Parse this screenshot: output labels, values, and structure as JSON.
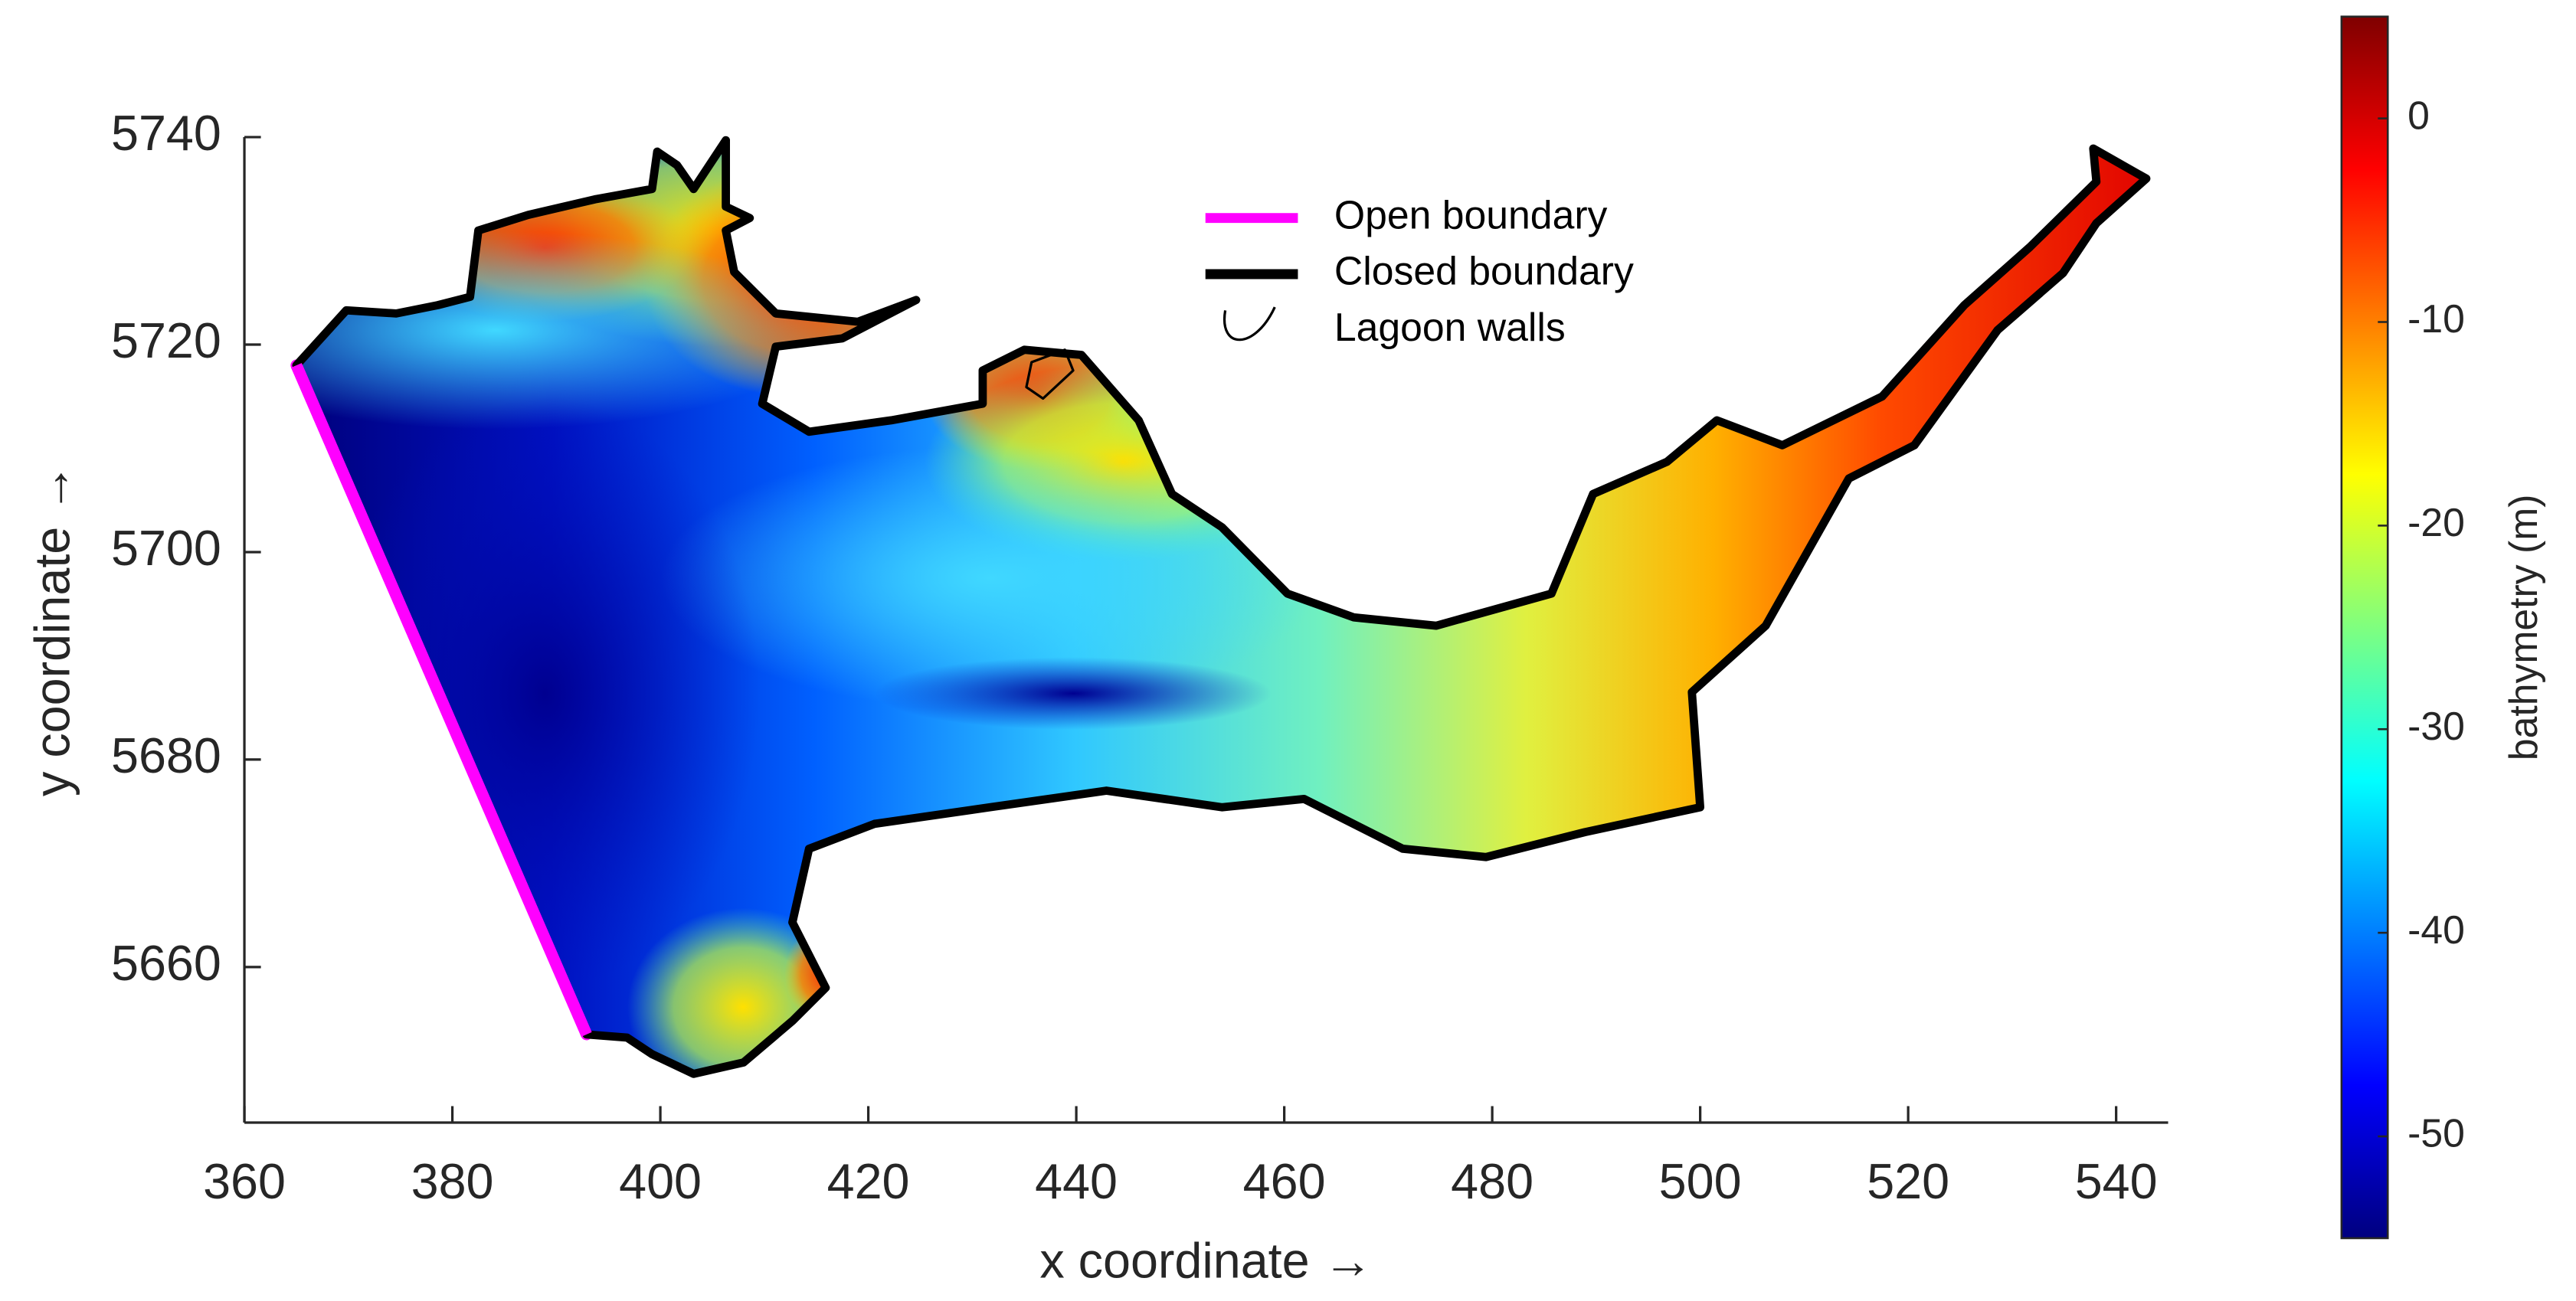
{
  "chart_data": {
    "type": "map",
    "xlabel": "x coordinate →",
    "ylabel": "y coordinate →",
    "xlim": [
      360,
      545
    ],
    "ylim": [
      5645,
      5740
    ],
    "xticks": [
      360,
      380,
      400,
      420,
      440,
      460,
      480,
      500,
      520,
      540
    ],
    "yticks": [
      5660,
      5680,
      5700,
      5720,
      5740
    ],
    "legend": "north",
    "colorbar": {
      "label": "bathymetry (m)",
      "colormap": "jet",
      "clim": [
        -55,
        5
      ],
      "ticks": [
        -50,
        -40,
        -30,
        -20,
        -10,
        0
      ]
    },
    "series": [
      {
        "name": "Open boundary",
        "color": "#ff00ff",
        "x": [
          392.9,
          365
        ],
        "y": [
          5653.5,
          5718
        ]
      },
      {
        "name": "Closed boundary",
        "color": "#000000",
        "x": [
          365,
          369.8,
          374.6,
          378.6,
          381.7,
          382.5,
          387.3,
          393.7,
          399.2,
          399.7,
          401.6,
          403.2,
          406.3,
          406.3,
          408.6,
          406.3,
          407.1,
          411.1,
          419,
          424.6,
          417.5,
          411.1,
          409.8,
          414.3,
          422.2,
          431,
          431,
          435,
          440.5,
          446,
          449.2,
          454,
          460.3,
          466.7,
          474.6,
          485.7,
          489.7,
          496.8,
          501.6,
          507.9,
          517.5,
          525.4,
          531.7,
          538.1,
          537.8,
          542.9,
          538.1,
          534.9,
          528.6,
          520.6,
          514.3,
          506.3,
          499.2,
          500,
          488.9,
          479.4,
          471.4,
          461.9,
          454,
          442.9,
          431.7,
          420.6,
          414.3,
          412.7,
          415.9,
          412.7,
          408,
          403.2,
          399.2,
          396.8,
          392.9
        ],
        "y": [
          5718,
          5723.3,
          5723,
          5723.8,
          5724.6,
          5731,
          5732.5,
          5734,
          5735,
          5738.6,
          5737.3,
          5735,
          5739.7,
          5733.3,
          5732.2,
          5731,
          5727,
          5723,
          5722.2,
          5724.3,
          5720.6,
          5719.8,
          5714.3,
          5711.6,
          5712.7,
          5714.3,
          5717.5,
          5719.5,
          5719,
          5712.7,
          5705.6,
          5702.4,
          5696,
          5693.7,
          5692.9,
          5696,
          5705.6,
          5708.7,
          5712.7,
          5710.3,
          5715,
          5723.8,
          5729.4,
          5735.7,
          5738.9,
          5736,
          5731.7,
          5726.9,
          5721.4,
          5710.3,
          5707.1,
          5692.9,
          5686.5,
          5675.4,
          5673,
          5670.6,
          5671.4,
          5676.2,
          5675.4,
          5677,
          5675.4,
          5673.8,
          5671.4,
          5664.3,
          5658,
          5654.8,
          5650.8,
          5649.7,
          5651.6,
          5653.2,
          5653.5
        ]
      },
      {
        "name": "Lagoon walls",
        "color": "#000000",
        "x": [
          435.7,
          435.2,
          436.8,
          439.7,
          438.9
        ],
        "y": [
          5718.3,
          5715.9,
          5714.8,
          5717.5,
          5719.5
        ]
      }
    ]
  }
}
